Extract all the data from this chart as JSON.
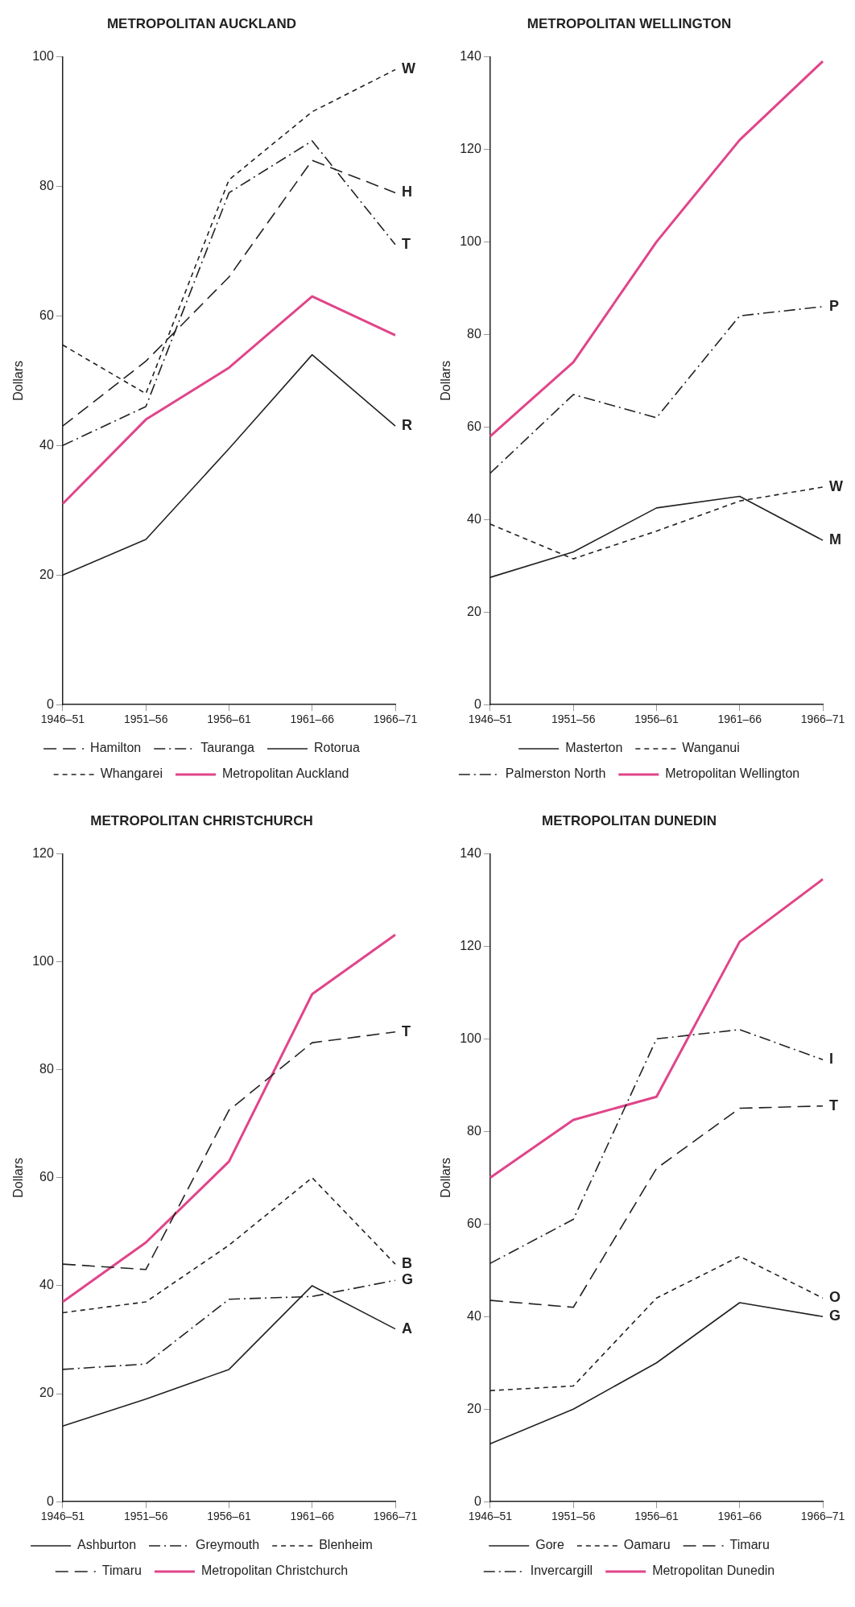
{
  "chart_data": [
    {
      "type": "line",
      "title": "METROPOLITAN AUCKLAND",
      "ylabel": "Dollars",
      "categories": [
        "1946–51",
        "1951–56",
        "1956–61",
        "1961–66",
        "1966–71"
      ],
      "ylim": [
        0,
        100
      ],
      "yticks": [
        0,
        20,
        40,
        60,
        80,
        100
      ],
      "grid": false,
      "legend": "bottom",
      "marker": "none",
      "series": [
        {
          "name": "Hamilton",
          "color": "#222222",
          "line_style": "longdash",
          "values": [
            43,
            53,
            66,
            84,
            79
          ]
        },
        {
          "name": "Tauranga",
          "color": "#222222",
          "line_style": "dashdot",
          "values": [
            40,
            46,
            79,
            87,
            71
          ]
        },
        {
          "name": "Rotorua",
          "color": "#222222",
          "line_style": "solid",
          "values": [
            20,
            25.5,
            39.5,
            54,
            43
          ]
        },
        {
          "name": "Whangarei",
          "color": "#222222",
          "line_style": "dashed",
          "values": [
            55.5,
            48,
            81,
            91.5,
            98
          ]
        },
        {
          "name": "Metropolitan Auckland",
          "color": "#e0458a",
          "line_style": "solid",
          "values": [
            31,
            44,
            52,
            63,
            57
          ]
        }
      ],
      "annotations": [
        {
          "text": "W",
          "x": "1966–71",
          "y": 98
        },
        {
          "text": "H",
          "x": "1966–71",
          "y": 79
        },
        {
          "text": "T",
          "x": "1966–71",
          "y": 71
        },
        {
          "text": "R",
          "x": "1966–71",
          "y": 43
        }
      ]
    },
    {
      "type": "line",
      "title": "METROPOLITAN WELLINGTON",
      "ylabel": "Dollars",
      "categories": [
        "1946–51",
        "1951–56",
        "1956–61",
        "1961–66",
        "1966–71"
      ],
      "ylim": [
        0,
        140
      ],
      "yticks": [
        0,
        20,
        40,
        60,
        80,
        100,
        120,
        140
      ],
      "grid": false,
      "legend": "bottom",
      "marker": "none",
      "series": [
        {
          "name": "Masterton",
          "color": "#222222",
          "line_style": "solid",
          "values": [
            27.5,
            33,
            42.5,
            45,
            35.5
          ]
        },
        {
          "name": "Wanganui",
          "color": "#222222",
          "line_style": "dashed",
          "values": [
            39,
            31.5,
            37.5,
            44,
            47
          ]
        },
        {
          "name": "Palmerston North",
          "color": "#222222",
          "line_style": "dashdot",
          "values": [
            50,
            67,
            62,
            84,
            86
          ]
        },
        {
          "name": "Metropolitan Wellington",
          "color": "#e0458a",
          "line_style": "solid",
          "values": [
            58,
            74,
            100,
            122,
            139
          ]
        }
      ],
      "annotations": [
        {
          "text": "P",
          "x": "1966–71",
          "y": 86
        },
        {
          "text": "W",
          "x": "1966–71",
          "y": 47
        },
        {
          "text": "M",
          "x": "1966–71",
          "y": 35.5
        }
      ]
    },
    {
      "type": "line",
      "title": "METROPOLITAN CHRISTCHURCH",
      "ylabel": "Dollars",
      "categories": [
        "1946–51",
        "1951–56",
        "1956–61",
        "1961–66",
        "1966–71"
      ],
      "ylim": [
        0,
        120
      ],
      "yticks": [
        0,
        20,
        40,
        60,
        80,
        100,
        120
      ],
      "grid": false,
      "legend": "bottom",
      "marker": "none",
      "series": [
        {
          "name": "Ashburton",
          "color": "#222222",
          "line_style": "solid",
          "values": [
            14,
            19,
            24.5,
            40,
            32
          ]
        },
        {
          "name": "Greymouth",
          "color": "#222222",
          "line_style": "dashdot",
          "values": [
            24.5,
            25.5,
            37.5,
            38,
            41
          ]
        },
        {
          "name": "Blenheim",
          "color": "#222222",
          "line_style": "dashed",
          "values": [
            35,
            37,
            47.5,
            60,
            44
          ]
        },
        {
          "name": "Timaru",
          "color": "#222222",
          "line_style": "longdash",
          "values": [
            44,
            43,
            72.5,
            85,
            87
          ]
        },
        {
          "name": "Metropolitan Christchurch",
          "color": "#e0458a",
          "line_style": "solid",
          "values": [
            37,
            48,
            63,
            94,
            105
          ]
        }
      ],
      "annotations": [
        {
          "text": "T",
          "x": "1966–71",
          "y": 87
        },
        {
          "text": "B",
          "x": "1966–71",
          "y": 44
        },
        {
          "text": "G",
          "x": "1966–71",
          "y": 41
        },
        {
          "text": "A",
          "x": "1966–71",
          "y": 32
        }
      ]
    },
    {
      "type": "line",
      "title": "METROPOLITAN DUNEDIN",
      "ylabel": "Dollars",
      "categories": [
        "1946–51",
        "1951–56",
        "1956–61",
        "1961–66",
        "1966–71"
      ],
      "ylim": [
        0,
        140
      ],
      "yticks": [
        0,
        20,
        40,
        60,
        80,
        100,
        120,
        140
      ],
      "grid": false,
      "legend": "bottom",
      "marker": "none",
      "series": [
        {
          "name": "Gore",
          "color": "#222222",
          "line_style": "solid",
          "values": [
            12.5,
            20,
            30,
            43,
            40
          ]
        },
        {
          "name": "Oamaru",
          "color": "#222222",
          "line_style": "dashed",
          "values": [
            24,
            25,
            44,
            53,
            44
          ]
        },
        {
          "name": "Timaru",
          "color": "#222222",
          "line_style": "longdash",
          "values": [
            43.5,
            42,
            72,
            85,
            85.5
          ]
        },
        {
          "name": "Invercargill",
          "color": "#222222",
          "line_style": "dashdot",
          "values": [
            51.5,
            61,
            100,
            102,
            95.5
          ]
        },
        {
          "name": "Metropolitan Dunedin",
          "color": "#e0458a",
          "line_style": "solid",
          "values": [
            70,
            82.5,
            87.5,
            121,
            134.5
          ]
        }
      ],
      "annotations": [
        {
          "text": "I",
          "x": "1966–71",
          "y": 95.5
        },
        {
          "text": "T",
          "x": "1966–71",
          "y": 85.5
        },
        {
          "text": "O",
          "x": "1966–71",
          "y": 44
        },
        {
          "text": "G",
          "x": "1966–71",
          "y": 40
        }
      ]
    }
  ]
}
